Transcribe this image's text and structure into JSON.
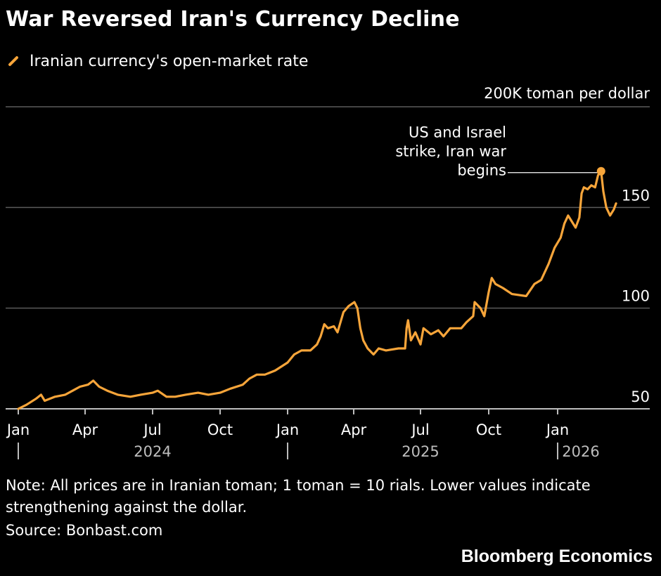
{
  "header": {
    "title": "War Reversed Iran's Currency Decline"
  },
  "legend": {
    "label": "Iranian currency's open-market rate",
    "color": "#f7a53a"
  },
  "chart_data": {
    "type": "line",
    "unit_label": "200K toman per dollar",
    "y_ticks": [
      50,
      100,
      150
    ],
    "ylim": [
      50,
      200
    ],
    "grid": true,
    "x_ticks": [
      "Jan",
      "Apr",
      "Jul",
      "Oct",
      "Jan",
      "Apr",
      "Jul",
      "Oct",
      "Jan"
    ],
    "x_tick_dates": [
      "2024-01-01",
      "2024-04-01",
      "2024-07-01",
      "2024-10-01",
      "2025-01-01",
      "2025-04-01",
      "2025-07-01",
      "2025-10-01",
      "2026-01-01"
    ],
    "year_labels": [
      "2024",
      "2025",
      "2026"
    ],
    "annotation": {
      "text_lines": [
        "US and Israel",
        "strike, Iran war",
        "begins"
      ],
      "date": "2026-02-28",
      "value": 168
    },
    "series": [
      {
        "name": "",
        "color": "#f7a53a",
        "points": [
          [
            "2024-01-01",
            50
          ],
          [
            "2024-01-12",
            52
          ],
          [
            "2024-01-25",
            55
          ],
          [
            "2024-02-01",
            57
          ],
          [
            "2024-02-06",
            54
          ],
          [
            "2024-02-20",
            56
          ],
          [
            "2024-03-05",
            57
          ],
          [
            "2024-03-15",
            59
          ],
          [
            "2024-03-25",
            61
          ],
          [
            "2024-04-05",
            62
          ],
          [
            "2024-04-12",
            64
          ],
          [
            "2024-04-20",
            61
          ],
          [
            "2024-05-01",
            59
          ],
          [
            "2024-05-15",
            57
          ],
          [
            "2024-06-01",
            56
          ],
          [
            "2024-06-15",
            57
          ],
          [
            "2024-07-01",
            58
          ],
          [
            "2024-07-08",
            59
          ],
          [
            "2024-07-20",
            56
          ],
          [
            "2024-08-01",
            56
          ],
          [
            "2024-08-15",
            57
          ],
          [
            "2024-09-01",
            58
          ],
          [
            "2024-09-15",
            57
          ],
          [
            "2024-10-01",
            58
          ],
          [
            "2024-10-15",
            60
          ],
          [
            "2024-11-01",
            62
          ],
          [
            "2024-11-10",
            65
          ],
          [
            "2024-11-20",
            67
          ],
          [
            "2024-12-01",
            67
          ],
          [
            "2024-12-15",
            69
          ],
          [
            "2025-01-01",
            73
          ],
          [
            "2025-01-10",
            77
          ],
          [
            "2025-01-20",
            79
          ],
          [
            "2025-02-01",
            79
          ],
          [
            "2025-02-10",
            82
          ],
          [
            "2025-02-15",
            86
          ],
          [
            "2025-02-20",
            92
          ],
          [
            "2025-02-25",
            90
          ],
          [
            "2025-03-05",
            91
          ],
          [
            "2025-03-10",
            88
          ],
          [
            "2025-03-18",
            98
          ],
          [
            "2025-03-25",
            101
          ],
          [
            "2025-04-02",
            103
          ],
          [
            "2025-04-06",
            100
          ],
          [
            "2025-04-10",
            90
          ],
          [
            "2025-04-14",
            84
          ],
          [
            "2025-04-20",
            80
          ],
          [
            "2025-04-28",
            77
          ],
          [
            "2025-05-05",
            80
          ],
          [
            "2025-05-15",
            79
          ],
          [
            "2025-06-01",
            80
          ],
          [
            "2025-06-10",
            80
          ],
          [
            "2025-06-12",
            90
          ],
          [
            "2025-06-14",
            94
          ],
          [
            "2025-06-18",
            84
          ],
          [
            "2025-06-24",
            88
          ],
          [
            "2025-07-01",
            82
          ],
          [
            "2025-07-05",
            90
          ],
          [
            "2025-07-15",
            87
          ],
          [
            "2025-07-25",
            89
          ],
          [
            "2025-08-01",
            86
          ],
          [
            "2025-08-10",
            90
          ],
          [
            "2025-08-25",
            90
          ],
          [
            "2025-09-01",
            93
          ],
          [
            "2025-09-10",
            96
          ],
          [
            "2025-09-12",
            103
          ],
          [
            "2025-09-20",
            100
          ],
          [
            "2025-09-25",
            96
          ],
          [
            "2025-10-01",
            108
          ],
          [
            "2025-10-05",
            115
          ],
          [
            "2025-10-10",
            112
          ],
          [
            "2025-10-20",
            110
          ],
          [
            "2025-11-01",
            107
          ],
          [
            "2025-11-20",
            106
          ],
          [
            "2025-12-01",
            112
          ],
          [
            "2025-12-10",
            114
          ],
          [
            "2025-12-20",
            122
          ],
          [
            "2025-12-28",
            130
          ],
          [
            "2026-01-05",
            135
          ],
          [
            "2026-01-10",
            142
          ],
          [
            "2026-01-15",
            146
          ],
          [
            "2026-01-20",
            143
          ],
          [
            "2026-01-25",
            140
          ],
          [
            "2026-01-30",
            145
          ],
          [
            "2026-02-02",
            157
          ],
          [
            "2026-02-05",
            160
          ],
          [
            "2026-02-10",
            159
          ],
          [
            "2026-02-15",
            161
          ],
          [
            "2026-02-20",
            160
          ],
          [
            "2026-02-24",
            166
          ],
          [
            "2026-02-28",
            168
          ],
          [
            "2026-03-03",
            158
          ],
          [
            "2026-03-07",
            150
          ],
          [
            "2026-03-12",
            146
          ],
          [
            "2026-03-17",
            149
          ],
          [
            "2026-03-20",
            152
          ]
        ]
      }
    ]
  },
  "footer": {
    "note": "Note: All prices are in Iranian toman; 1 toman = 10 rials. Lower values indicate strengthening against the dollar.",
    "source": "Source: Bonbast.com",
    "brand": "Bloomberg Economics"
  }
}
